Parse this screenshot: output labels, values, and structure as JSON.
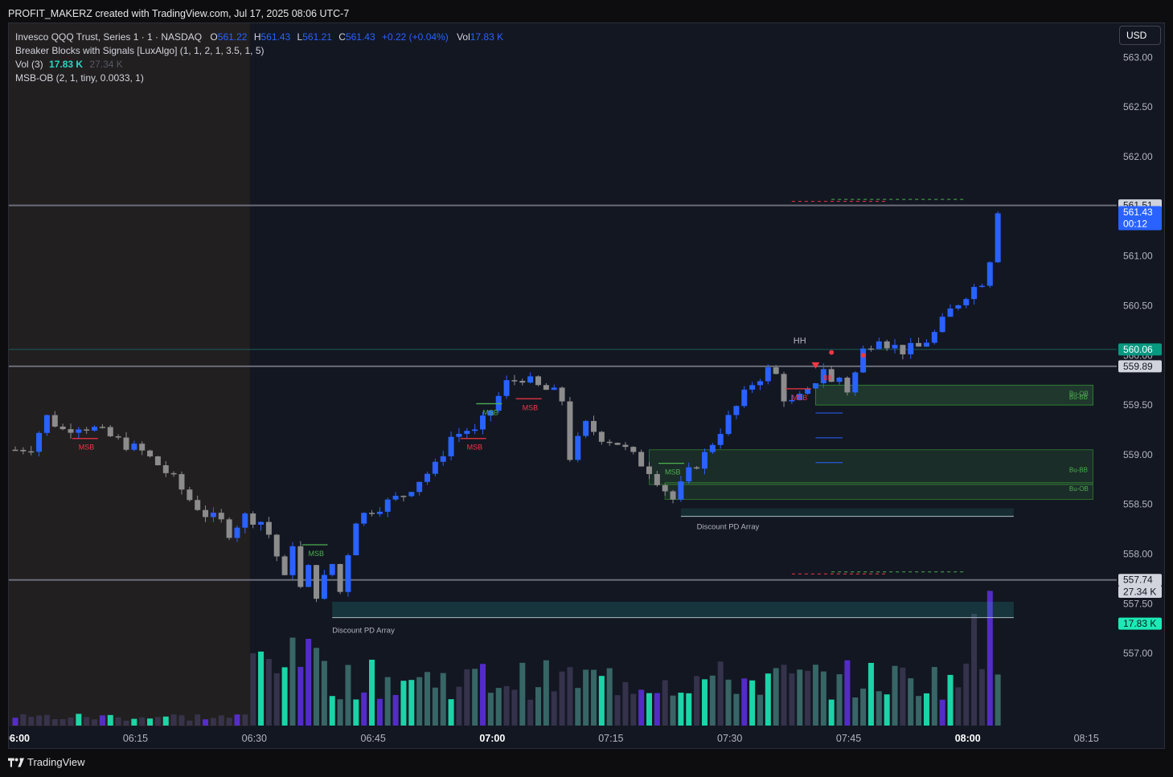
{
  "caption": "PROFIT_MAKERZ created with TradingView.com, Jul 17, 2025 08:06 UTC-7",
  "legend": {
    "symbol": "Invesco QQQ Trust, Series 1 · 1 · NASDAQ",
    "open_label": "O",
    "open": "561.22",
    "high_label": "H",
    "high": "561.43",
    "low_label": "L",
    "low": "561.21",
    "close_label": "C",
    "close": "561.43",
    "change": "+0.22 (+0.04%)",
    "vol_label": "Vol",
    "vol": "17.83 K",
    "indicator1": "Breaker Blocks with Signals [LuxAlgo] (1, 1, 2, 1, 3.5, 1, 5)",
    "indicator2_name": "Vol (3)",
    "indicator2_now": "17.83 K",
    "indicator2_prev": "27.34 K",
    "indicator3": "MSB-OB (2, 1, tiny, 0.0033, 1)"
  },
  "currency_button": "USD",
  "brand": "TradingView",
  "colors": {
    "background": "#131722",
    "bull": "#2962ff",
    "bear": "#8c8c8c",
    "vol_bright": "#1de9b6",
    "vol_teal": "#3d6e6e",
    "vol_dark": "#3a3550",
    "vol_purple": "#5b2fd9",
    "msb_bear": "#f23645",
    "msb_bull": "#4caf50",
    "price_tag": "#2962ff",
    "teal_tag": "#089981",
    "grey_tag": "#505560"
  },
  "chart_data": {
    "type": "candlestick",
    "symbol": "QQQ",
    "interval": "1",
    "ylim": [
      556.5,
      563.1
    ],
    "xlim": [
      "06:00",
      "08:19"
    ],
    "price_ticks": [
      "557.00",
      "557.50",
      "558.00",
      "558.50",
      "559.00",
      "559.50",
      "560.00",
      "560.50",
      "561.00",
      "561.50",
      "562.00",
      "562.50",
      "563.00"
    ],
    "time_ticks": [
      {
        "t": "06:00",
        "bold": true
      },
      {
        "t": "06:15",
        "bold": false
      },
      {
        "t": "06:30",
        "bold": false
      },
      {
        "t": "06:45",
        "bold": false
      },
      {
        "t": "07:00",
        "bold": true
      },
      {
        "t": "07:15",
        "bold": false
      },
      {
        "t": "07:30",
        "bold": false
      },
      {
        "t": "07:45",
        "bold": false
      },
      {
        "t": "08:00",
        "bold": true
      },
      {
        "t": "08:15",
        "bold": false
      }
    ],
    "premarket_until": "06:30",
    "close_path": [
      [
        "06:00",
        559.05
      ],
      [
        "06:02",
        559.08
      ],
      [
        "06:04",
        559.38
      ],
      [
        "06:06",
        559.25
      ],
      [
        "06:08",
        559.3
      ],
      [
        "06:10",
        559.26
      ],
      [
        "06:12",
        559.18
      ],
      [
        "06:14",
        559.1
      ],
      [
        "06:16",
        559.03
      ],
      [
        "06:18",
        558.9
      ],
      [
        "06:20",
        558.75
      ],
      [
        "06:22",
        558.55
      ],
      [
        "06:24",
        558.4
      ],
      [
        "06:26",
        558.32
      ],
      [
        "06:27",
        558.22
      ],
      [
        "06:29",
        558.38
      ],
      [
        "06:31",
        558.33
      ],
      [
        "06:32",
        558.2
      ],
      [
        "06:33",
        557.98
      ],
      [
        "06:34",
        557.74
      ],
      [
        "06:35",
        558.12
      ],
      [
        "06:36",
        557.65
      ],
      [
        "06:37",
        557.85
      ],
      [
        "06:38",
        557.6
      ],
      [
        "06:40",
        557.9
      ],
      [
        "06:41",
        557.62
      ],
      [
        "06:42",
        558.02
      ],
      [
        "06:43",
        558.35
      ],
      [
        "06:45",
        558.45
      ],
      [
        "06:47",
        558.52
      ],
      [
        "06:49",
        558.6
      ],
      [
        "06:51",
        558.75
      ],
      [
        "06:53",
        558.88
      ],
      [
        "06:55",
        559.18
      ],
      [
        "06:57",
        559.25
      ],
      [
        "06:58",
        559.22
      ],
      [
        "07:00",
        559.45
      ],
      [
        "07:02",
        559.72
      ],
      [
        "07:04",
        559.78
      ],
      [
        "07:06",
        559.68
      ],
      [
        "07:08",
        559.62
      ],
      [
        "07:09",
        559.55
      ],
      [
        "07:10",
        558.98
      ],
      [
        "07:12",
        559.3
      ],
      [
        "07:14",
        559.18
      ],
      [
        "07:16",
        559.12
      ],
      [
        "07:18",
        558.98
      ],
      [
        "07:20",
        558.85
      ],
      [
        "07:22",
        558.65
      ],
      [
        "07:23",
        558.55
      ],
      [
        "07:25",
        558.82
      ],
      [
        "07:27",
        559.0
      ],
      [
        "07:29",
        559.25
      ],
      [
        "07:31",
        559.48
      ],
      [
        "07:33",
        559.72
      ],
      [
        "07:35",
        559.85
      ],
      [
        "07:36",
        559.8
      ],
      [
        "07:37",
        559.58
      ],
      [
        "07:38",
        559.52
      ],
      [
        "07:40",
        559.62
      ],
      [
        "07:42",
        559.88
      ],
      [
        "07:43",
        559.72
      ],
      [
        "07:44",
        559.78
      ],
      [
        "07:45",
        559.65
      ],
      [
        "07:46",
        559.82
      ],
      [
        "07:47",
        560.05
      ],
      [
        "07:49",
        560.2
      ],
      [
        "07:50",
        560.12
      ],
      [
        "07:52",
        560.05
      ],
      [
        "07:54",
        560.08
      ],
      [
        "07:56",
        560.22
      ],
      [
        "07:58",
        560.45
      ],
      [
        "08:00",
        560.62
      ],
      [
        "08:02",
        560.75
      ],
      [
        "08:03",
        560.98
      ],
      [
        "08:04",
        561.43
      ]
    ],
    "volume_ylim": [
      0,
      60000
    ],
    "volume_last": 17830,
    "volume_prev": 27340,
    "horizontal_levels": [
      561.51,
      559.89,
      557.74
    ],
    "level_560_06": 560.06,
    "price_tags": [
      {
        "price": 561.51,
        "text": "561.51",
        "kind": "grey"
      },
      {
        "price": 561.43,
        "text": "561.43",
        "sub": "00:12",
        "kind": "blue"
      },
      {
        "price": 560.06,
        "text": "560.06",
        "kind": "teal"
      },
      {
        "price": 559.89,
        "text": "559.89",
        "kind": "grey"
      },
      {
        "price": 557.74,
        "text": "557.74",
        "kind": "grey"
      },
      {
        "price": 557.62,
        "text": "27.34 K",
        "kind": "grey"
      },
      {
        "price": 557.3,
        "text": "17.83 K",
        "kind": "vol"
      }
    ],
    "annotations": {
      "msb_labels": [
        {
          "t": "06:09",
          "p": 559.05,
          "text": "MSB",
          "color": "bear"
        },
        {
          "t": "06:38",
          "p": 557.98,
          "text": "MSB",
          "color": "bull"
        },
        {
          "t": "06:58",
          "p": 559.05,
          "text": "MSB",
          "color": "bear"
        },
        {
          "t": "07:00",
          "p": 559.4,
          "text": "MSB",
          "color": "bull"
        },
        {
          "t": "07:05",
          "p": 559.45,
          "text": "MSB",
          "color": "bear"
        },
        {
          "t": "07:23",
          "p": 558.8,
          "text": "MSB",
          "color": "bull"
        },
        {
          "t": "07:39",
          "p": 559.55,
          "text": "MSB",
          "color": "bear"
        }
      ],
      "hh_label": "HH",
      "discount_label": "Discount PD Array",
      "ob_labels": [
        "Bu-OB",
        "Bu-BB",
        "Bu-BB",
        "Bu-OB"
      ],
      "bb_label": "BB"
    }
  }
}
